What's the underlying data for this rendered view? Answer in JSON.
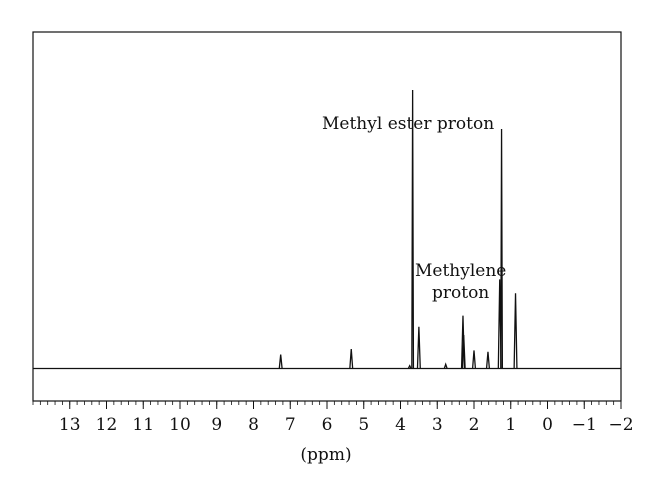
{
  "chart_data": {
    "type": "line",
    "xlabel": "(ppm)",
    "xlim": [
      14,
      -2
    ],
    "x_reversed": true,
    "x_ticks": [
      {
        "value": 13,
        "label": "13"
      },
      {
        "value": 12,
        "label": "12"
      },
      {
        "value": 11,
        "label": "11"
      },
      {
        "value": 10,
        "label": "10"
      },
      {
        "value": 9,
        "label": "9"
      },
      {
        "value": 8,
        "label": "8"
      },
      {
        "value": 7,
        "label": "7"
      },
      {
        "value": 6,
        "label": "6"
      },
      {
        "value": 5,
        "label": "5"
      },
      {
        "value": 4,
        "label": "4"
      },
      {
        "value": 3,
        "label": "3"
      },
      {
        "value": 2,
        "label": "2"
      },
      {
        "value": 1,
        "label": "1"
      },
      {
        "value": 0,
        "label": "0"
      },
      {
        "value": -1,
        "label": "−1"
      },
      {
        "value": -2,
        "label": "−2"
      }
    ],
    "peaks": [
      {
        "x": 7.26,
        "h": 0.05
      },
      {
        "x": 5.34,
        "h": 0.07
      },
      {
        "x": 3.75,
        "h": 0.01
      },
      {
        "x": 3.67,
        "h": 1.0
      },
      {
        "x": 3.5,
        "h": 0.15
      },
      {
        "x": 2.77,
        "h": 0.015
      },
      {
        "x": 2.3,
        "h": 0.19
      },
      {
        "x": 2.28,
        "h": 0.12
      },
      {
        "x": 2.0,
        "h": 0.065
      },
      {
        "x": 1.62,
        "h": 0.06
      },
      {
        "x": 1.3,
        "h": 0.32
      },
      {
        "x": 1.25,
        "h": 0.86
      },
      {
        "x": 0.87,
        "h": 0.27
      }
    ],
    "annotations": [
      {
        "text": "Methyl ester proton",
        "x": 3.67
      },
      {
        "text": "Methylene",
        "x": 1.25
      },
      {
        "text": "proton",
        "x": 1.25
      }
    ]
  }
}
